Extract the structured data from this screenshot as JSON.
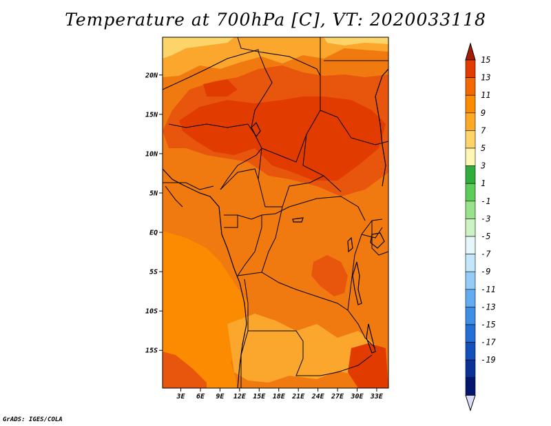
{
  "title": "Temperature at 700hPa [C], VT: 2020033118",
  "credit": "GrADS: IGES/COLA",
  "lat_labels": [
    "20N",
    "15N",
    "10N",
    "5N",
    "EQ",
    "5S",
    "10S",
    "15S"
  ],
  "lat_values": [
    20,
    15,
    10,
    5,
    0,
    -5,
    -10,
    -15
  ],
  "lon_labels": [
    "3E",
    "6E",
    "9E",
    "12E",
    "15E",
    "18E",
    "21E",
    "24E",
    "27E",
    "30E",
    "33E"
  ],
  "lon_values": [
    3,
    6,
    9,
    12,
    15,
    18,
    21,
    24,
    27,
    30,
    33
  ],
  "map_extent": {
    "lon": [
      0.2,
      34.8
    ],
    "lat": [
      -19.8,
      24.8
    ]
  },
  "colorbar": {
    "labels": [
      "15",
      "13",
      "11",
      "9",
      "7",
      "5",
      "3",
      "1",
      "-1",
      "-3",
      "-5",
      "-7",
      "-9",
      "-11",
      "-13",
      "-15",
      "-17",
      "-19"
    ],
    "colors": [
      "#a51c00",
      "#e23b00",
      "#f56800",
      "#fb8b00",
      "#fcaa26",
      "#fdd46a",
      "#fff6b4",
      "#2fae3b",
      "#5ccd58",
      "#98e28b",
      "#ccf3c4",
      "#e6f7f9",
      "#c3e6fb",
      "#94ccf7",
      "#64acf0",
      "#3f8ee6",
      "#236fd6",
      "#1350ba",
      "#0a3296",
      "#05166e",
      "#dcdcf8"
    ]
  },
  "field": {
    "background": "#f07a10",
    "zones": [
      {
        "name": "sahel-warm-band",
        "color": "#e8560e"
      },
      {
        "name": "chad-warm-core",
        "color": "#e23b00"
      },
      {
        "name": "northern-cool-fringe",
        "color": "#fba62c"
      },
      {
        "name": "sahara-cool-edge",
        "color": "#fdd46a"
      },
      {
        "name": "atlantic-cool-band",
        "color": "#fb8b00"
      },
      {
        "name": "southern-cool-area",
        "color": "#fba62c"
      },
      {
        "name": "congo-warm-patch",
        "color": "#e8560e"
      },
      {
        "name": "sw-warm-patch",
        "color": "#e8560e"
      },
      {
        "name": "se-warm-patch",
        "color": "#e23b00"
      }
    ]
  }
}
